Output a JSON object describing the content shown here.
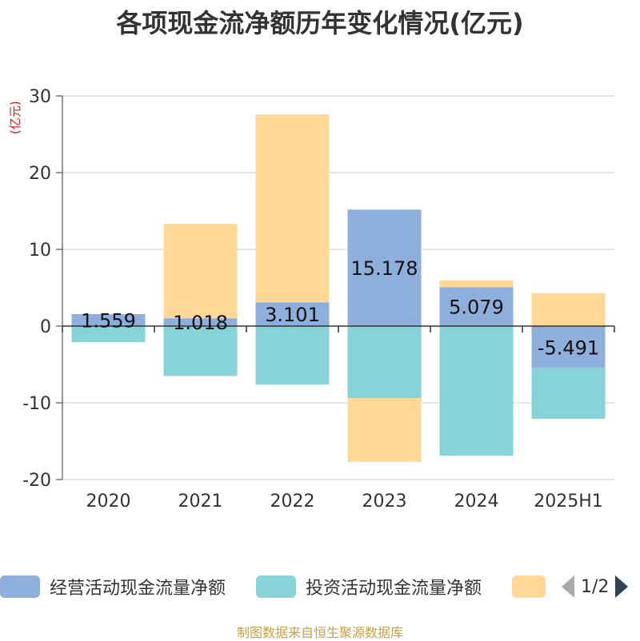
{
  "title": "各项现金流净额历年变化情况(亿元)",
  "unit_label": "(亿元)",
  "source": "制图数据来自恒生聚源数据库",
  "legend": {
    "items": [
      {
        "label": "经营活动现金流量净额",
        "color": "#8eaedb"
      },
      {
        "label": "投资活动现金流量净额",
        "color": "#86d4d7"
      },
      {
        "label": "",
        "color": "#ffd895"
      }
    ],
    "page_text": "1/2"
  },
  "chart_data": {
    "type": "bar",
    "stacked": true,
    "categories": [
      "2020",
      "2021",
      "2022",
      "2023",
      "2024",
      "2025H1"
    ],
    "ylim": [
      -20,
      30
    ],
    "yticks": [
      -20,
      -10,
      0,
      10,
      20,
      30
    ],
    "grid": true,
    "legend_position": "bottom",
    "series": [
      {
        "name": "经营活动现金流量净额",
        "color": "#8eaedb",
        "values": [
          1.559,
          1.018,
          3.101,
          15.178,
          5.079,
          -5.491
        ],
        "labels": [
          "1.559",
          "1.018",
          "3.101",
          "15.178",
          "5.079",
          "-5.491"
        ]
      },
      {
        "name": "投资活动现金流量净额",
        "color": "#86d4d7",
        "values": [
          -2.1,
          -6.5,
          -7.6,
          -9.4,
          -16.9,
          -6.6
        ]
      },
      {
        "color": "#ffd895",
        "values": [
          0,
          12.3,
          24.5,
          -8.3,
          0.9,
          4.3
        ]
      }
    ]
  }
}
